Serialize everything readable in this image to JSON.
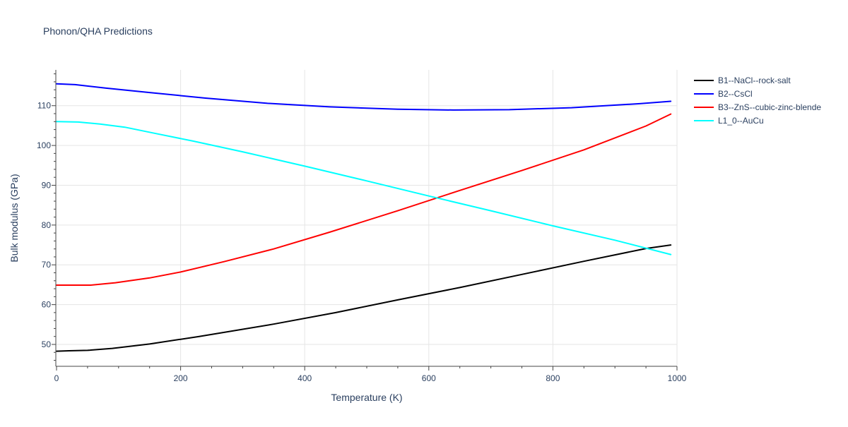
{
  "chart_data": {
    "type": "line",
    "title": "Phonon/QHA Predictions",
    "xlabel": "Temperature (K)",
    "ylabel": "Bulk modulus (GPa)",
    "xlim": [
      0,
      1000
    ],
    "ylim": [
      44.5,
      119
    ],
    "xticks": [
      0,
      200,
      400,
      600,
      800,
      1000
    ],
    "yticks": [
      50,
      60,
      70,
      80,
      90,
      100,
      110
    ],
    "grid": true,
    "legend_position": "top-right",
    "series": [
      {
        "name": "B1--NaCl--rock-salt",
        "color": "#000000",
        "x": [
          0,
          20,
          50,
          90,
          150,
          230,
          350,
          450,
          550,
          650,
          750,
          850,
          950,
          990
        ],
        "y": [
          48.3,
          48.4,
          48.5,
          49.0,
          50.1,
          52.0,
          55.1,
          58.0,
          61.2,
          64.3,
          67.6,
          70.9,
          74.1,
          75.0
        ]
      },
      {
        "name": "B2--CsCl",
        "color": "#0000ff",
        "x": [
          0,
          30,
          80,
          150,
          240,
          340,
          440,
          550,
          640,
          730,
          830,
          940,
          990
        ],
        "y": [
          115.5,
          115.3,
          114.4,
          113.3,
          111.9,
          110.6,
          109.7,
          109.1,
          108.9,
          109.0,
          109.5,
          110.5,
          111.1
        ]
      },
      {
        "name": "B3--ZnS--cubic-zinc-blende",
        "color": "#ff0000",
        "x": [
          0,
          30,
          55,
          95,
          150,
          200,
          270,
          350,
          440,
          550,
          650,
          750,
          850,
          950,
          990
        ],
        "y": [
          64.9,
          64.9,
          64.9,
          65.5,
          66.7,
          68.2,
          70.8,
          74.0,
          78.2,
          83.6,
          88.7,
          93.7,
          98.9,
          104.9,
          107.9
        ]
      },
      {
        "name": "L1_0--AuCu",
        "color": "#00ffff",
        "x": [
          0,
          35,
          70,
          110,
          160,
          220,
          300,
          400,
          500,
          600,
          700,
          800,
          900,
          990
        ],
        "y": [
          106.0,
          105.9,
          105.4,
          104.6,
          103.0,
          101.1,
          98.4,
          94.8,
          91.1,
          87.3,
          83.6,
          79.8,
          76.2,
          72.6
        ]
      }
    ]
  }
}
